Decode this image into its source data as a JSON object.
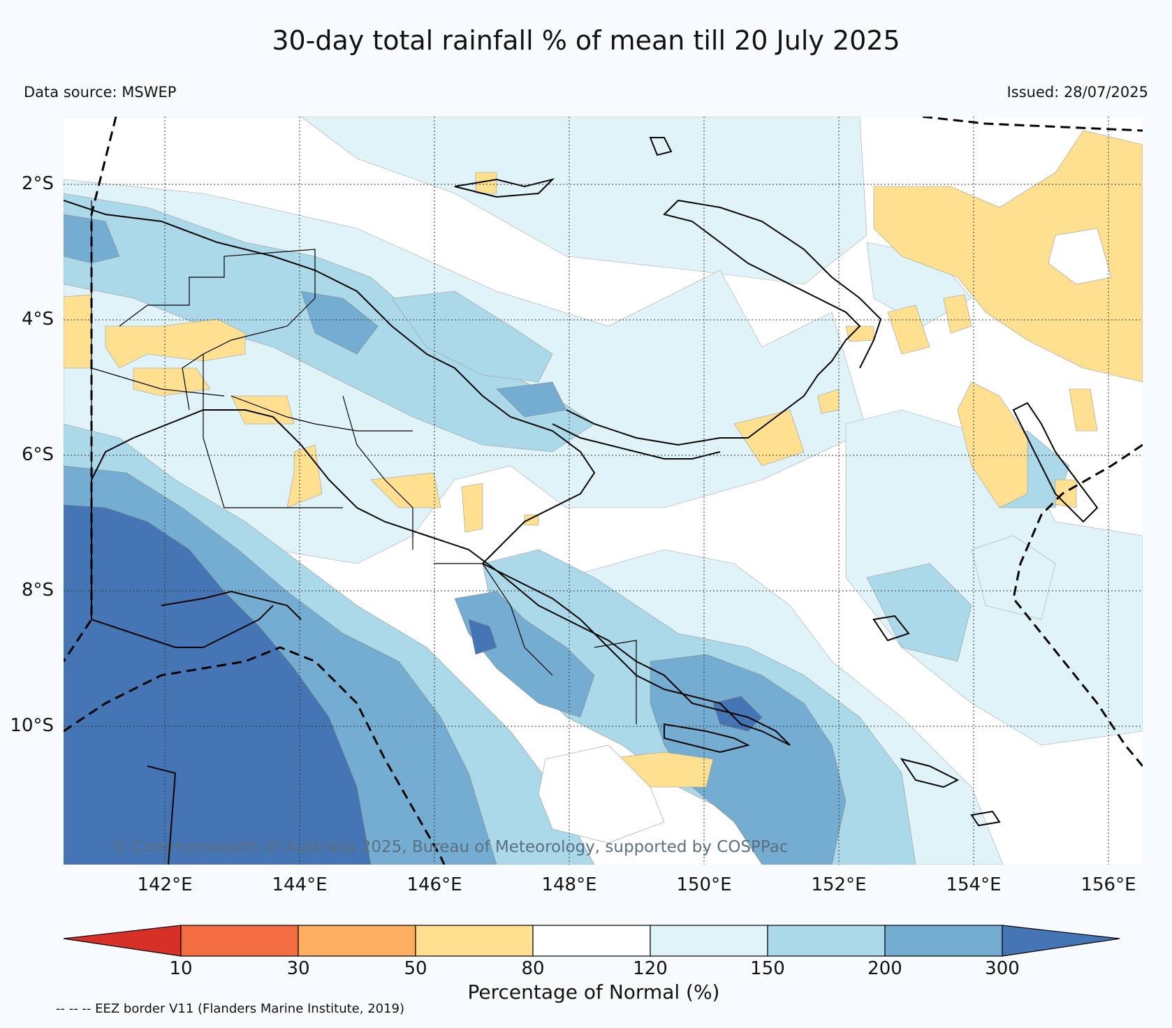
{
  "title": "30-day total rainfall % of mean till 20 July 2025",
  "data_source": "Data source: MSWEP",
  "issued": "Issued: 28/07/2025",
  "copyright": "© Commonwealth of Australia 2025, Bureau of Meteorology, supported by COSPPac",
  "latitude_labels": [
    "2°S",
    "4°S",
    "6°S",
    "8°S",
    "10°S"
  ],
  "longitude_labels": [
    "142°E",
    "144°E",
    "146°E",
    "148°E",
    "150°E",
    "152°E",
    "154°E",
    "156°E"
  ],
  "colorbar": {
    "title": "Percentage of Normal (%)",
    "tick_labels": [
      "10",
      "30",
      "50",
      "80",
      "120",
      "150",
      "200",
      "300"
    ],
    "colors": [
      "#d73027",
      "#f46d43",
      "#fdae61",
      "#fee090",
      "#ffffff",
      "#e0f3f8",
      "#abd9e9",
      "#74add1",
      "#4575b4"
    ]
  },
  "legend_note": "-- -- -- EEZ border V11 (Flanders Marine Institute, 2019)"
}
